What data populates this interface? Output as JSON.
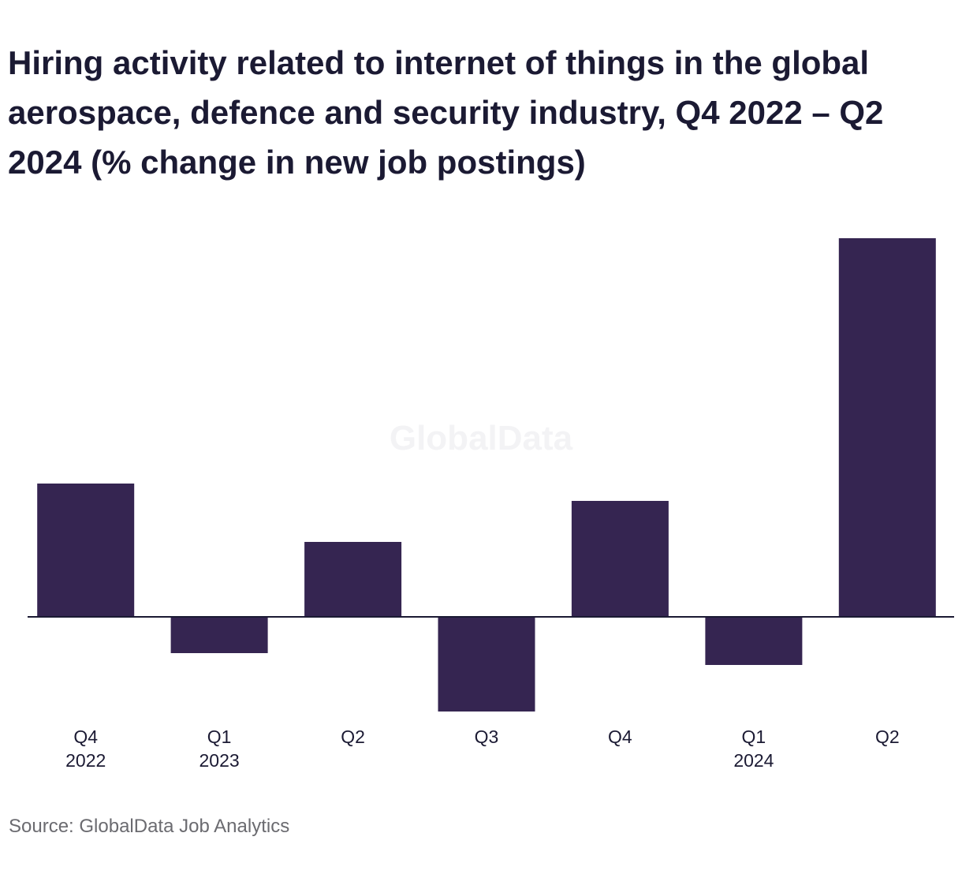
{
  "chart_data": {
    "type": "bar",
    "title": "Hiring activity related to internet of things in the global aerospace, defence and security industry, Q4 2022 – Q2 2024 (% change in new job postings)",
    "xlabel": "",
    "ylabel": "",
    "categories": [
      {
        "quarter": "Q4",
        "year": "2022"
      },
      {
        "quarter": "Q1",
        "year": "2023"
      },
      {
        "quarter": "Q2",
        "year": ""
      },
      {
        "quarter": "Q3",
        "year": ""
      },
      {
        "quarter": "Q4",
        "year": ""
      },
      {
        "quarter": "Q1",
        "year": "2024"
      },
      {
        "quarter": "Q2",
        "year": ""
      }
    ],
    "values": [
      16.9,
      -4.6,
      9.5,
      -12.0,
      14.7,
      -6.1,
      48.0
    ],
    "ylim": [
      -12,
      48
    ],
    "grid": false,
    "legend": "none",
    "bar_color": "#352551",
    "watermark": "GlobalData",
    "source": "Source: GlobalData Job Analytics"
  }
}
